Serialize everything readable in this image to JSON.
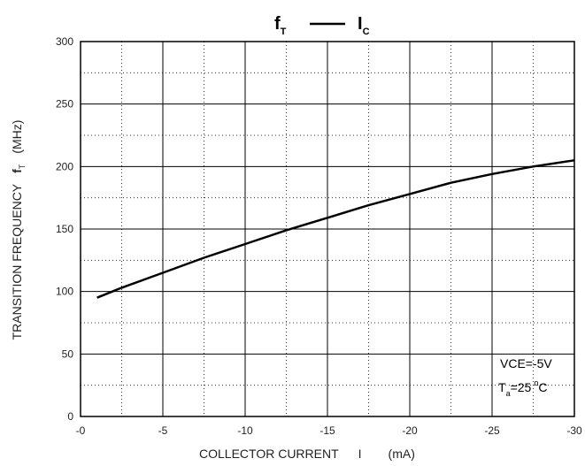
{
  "chart_data": {
    "type": "line",
    "title": {
      "left_symbol": "f",
      "left_subscript": "T",
      "dash": "—",
      "right_symbol": "I",
      "right_subscript": "C"
    },
    "xlabel": {
      "text": "COLLECTOR CURRENT",
      "symbol": "I",
      "unit": "(mA)"
    },
    "ylabel": {
      "text": "TRANSITION FREQUENCY",
      "symbol": "f",
      "symbol_subscript": "T",
      "unit": "(MHz)"
    },
    "xlim": [
      0,
      -30
    ],
    "ylim": [
      0,
      300
    ],
    "x_ticks": [
      "-0",
      "-5",
      "-10",
      "-15",
      "-20",
      "-25",
      "-30"
    ],
    "x_tick_values": [
      0,
      -5,
      -10,
      -15,
      -20,
      -25,
      -30
    ],
    "y_ticks": [
      "0",
      "50",
      "100",
      "150",
      "200",
      "250",
      "300"
    ],
    "y_tick_values": [
      0,
      50,
      100,
      150,
      200,
      250,
      300
    ],
    "grid": {
      "major": true,
      "minor_dotted": true
    },
    "series": [
      {
        "color": "#000000",
        "x": [
          -1,
          -2.5,
          -5,
          -7.5,
          -10,
          -12.5,
          -15,
          -17.5,
          -20,
          -22.5,
          -25,
          -27.5,
          -30
        ],
        "y": [
          95,
          103,
          115,
          127,
          138,
          149,
          159,
          169,
          178,
          187,
          194,
          200,
          205
        ]
      }
    ],
    "annotations": {
      "line1": "VCE=-5V",
      "line2_symbol": "T",
      "line2_subscript": "a",
      "line2_value": "=25",
      "line2_degree": "o",
      "line2_unit": "C"
    }
  }
}
